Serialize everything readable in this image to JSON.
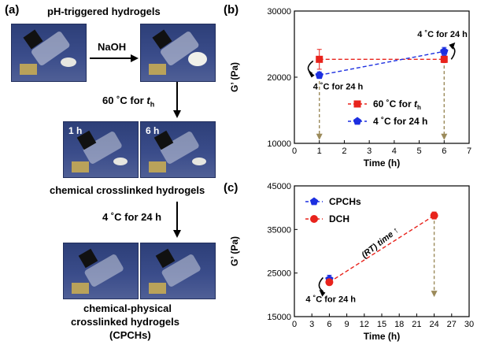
{
  "panel_a": {
    "label": "(a)",
    "title": "pH-triggered hydrogels",
    "step1": "NaOH",
    "step2_prefix": "60 ˚C for ",
    "step2_var": "t",
    "step2_sub": "h",
    "photo_tag_1": "1 h",
    "photo_tag_2": "6 h",
    "caption_chem": "chemical crosslinked hydrogels",
    "step3": "4 ˚C for 24 h",
    "caption_cpch_1": "chemical-physical",
    "caption_cpch_2": "crosslinked hydrogels",
    "caption_cpch_3": "(CPCHs)"
  },
  "chart_data": [
    {
      "type": "line",
      "panel": "(b)",
      "xlabel": "Time (h)",
      "ylabel": "G’ (Pa)",
      "xlim": [
        0,
        7
      ],
      "ylim": [
        10000,
        30000
      ],
      "xticks": [
        "0",
        "1",
        "2",
        "3",
        "4",
        "5",
        "6",
        "7"
      ],
      "yticks": [
        "10000",
        "20000",
        "30000"
      ],
      "series": [
        {
          "name": "60 ˚C for t_h",
          "color": "#e8231c",
          "marker": "square",
          "x": [
            1,
            6
          ],
          "y": [
            22700,
            22700
          ],
          "err": [
            1500,
            500
          ]
        },
        {
          "name": "4 ˚C for 24 h",
          "color": "#1c2fe0",
          "marker": "pentagon",
          "x": [
            1,
            6
          ],
          "y": [
            20300,
            23900
          ],
          "err": [
            500,
            600
          ]
        }
      ],
      "legend": {
        "position": "lower-right",
        "item1_prefix": "60 ˚C for ",
        "item1_var": "t",
        "item1_sub": "h",
        "item2": "4 ˚C for 24 h"
      },
      "annotations": [
        "4 ˚C for 24 h",
        "4 ˚C for 24 h"
      ]
    },
    {
      "type": "scatter",
      "panel": "(c)",
      "xlabel": "Time (h)",
      "ylabel": "G’ (Pa)",
      "xlim": [
        0,
        30
      ],
      "ylim": [
        15000,
        45000
      ],
      "xticks": [
        "0",
        "3",
        "6",
        "9",
        "12",
        "15",
        "18",
        "21",
        "24",
        "27",
        "30"
      ],
      "yticks": [
        "15000",
        "25000",
        "35000",
        "45000"
      ],
      "series": [
        {
          "name": "CPCHs",
          "color": "#1c2fe0",
          "marker": "pentagon",
          "x": [
            6
          ],
          "y": [
            23600
          ],
          "err": [
            900
          ]
        },
        {
          "name": "DCH",
          "color": "#e8231c",
          "marker": "circle",
          "x": [
            6,
            24
          ],
          "y": [
            22900,
            38200
          ],
          "err": [
            600,
            800
          ]
        }
      ],
      "legend": {
        "position": "top-left",
        "item1": "CPCHs",
        "item2": "DCH"
      },
      "annotations": [
        "(RT) time ↑",
        "4 ˚C for 24 h"
      ]
    }
  ],
  "colors": {
    "red": "#e8231c",
    "blue": "#1c2fe0",
    "guide": "#9b8a5a",
    "photo_bg": "#33457f"
  }
}
